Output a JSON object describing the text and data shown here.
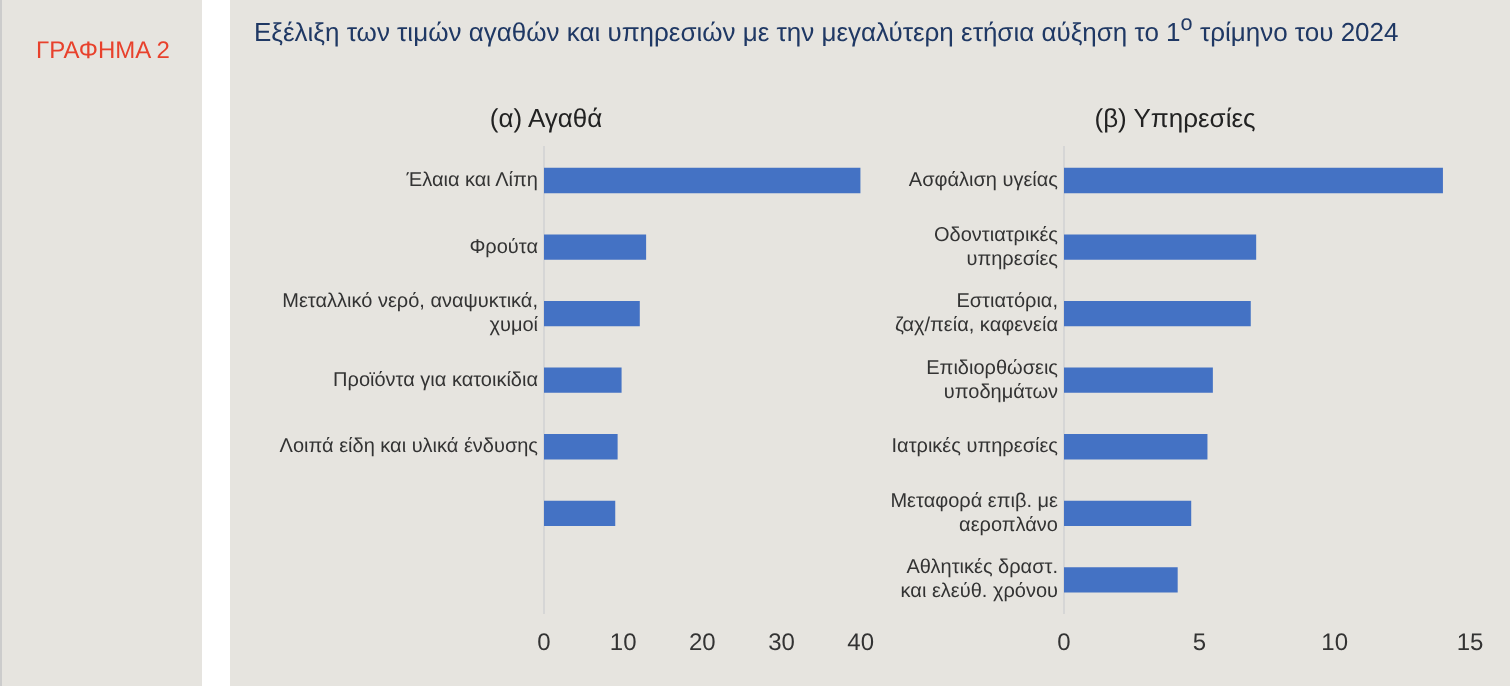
{
  "chart_data": [
    {
      "type": "bar",
      "orientation": "horizontal",
      "title": "(α) Αγαθά",
      "annotations": [
        "ΓΡΑΦΗΜΑ 2",
        "Εξέλιξη των τιμών αγαθών και υπηρεσιών με την μεγαλύτερη ετήσια αύξηση το 1$^{ο}$ τρίμηνο του 2024"
      ],
      "categories": [
        "Έλαια και Λίπη",
        "Φρούτα",
        "Μεταλλικό νερό, αναψυκτικά, χυμοί",
        "Προϊόντα για κατοικίδια",
        "Λοιπά είδη και υλικά ένδυσης",
        null,
        null
      ],
      "values": [
        40.0,
        12.9,
        12.1,
        9.8,
        9.3,
        9.0,
        null
      ],
      "color": "#4472c4",
      "xlim": [
        0,
        40
      ],
      "xticks": [
        0,
        10,
        20,
        30,
        40
      ],
      "grid": false
    },
    {
      "type": "bar",
      "orientation": "horizontal",
      "title": "(β) Υπηρεσίες",
      "categories": [
        "Ασφάλιση υγείας",
        "Οδοντιατρικές υπηρεσίες",
        "Εστιατόρια, ζαχ/πεία, καφενεία",
        "Επιδιορθώσεις υποδημάτων",
        "Ιατρικές υπηρεσίες",
        "Μεταφορά επιβ. με αεροπλάνο",
        "Αθλητικές δραστ. και ελεύθ. χρόνου"
      ],
      "values": [
        14.0,
        7.1,
        6.9,
        5.5,
        5.3,
        4.7,
        4.2
      ],
      "color": "#4472c4",
      "xlim": [
        0,
        15
      ],
      "xticks": [
        0,
        5,
        10,
        15
      ],
      "grid": false
    }
  ]
}
